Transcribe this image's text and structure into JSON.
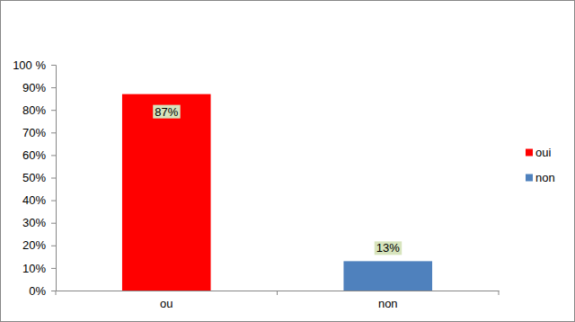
{
  "chart_data": {
    "type": "bar",
    "categories": [
      "ou",
      "non"
    ],
    "series": [
      {
        "name": "oui",
        "color": "#ff0000",
        "values": [
          87,
          null
        ],
        "value_labels": [
          "87%",
          null
        ]
      },
      {
        "name": "non",
        "color": "#4f81bd",
        "values": [
          null,
          13
        ],
        "value_labels": [
          null,
          "13%"
        ]
      }
    ],
    "ylim": [
      0,
      100
    ],
    "yticks": [
      {
        "value": 0,
        "label": "0%"
      },
      {
        "value": 10,
        "label": "10%"
      },
      {
        "value": 20,
        "label": "20%"
      },
      {
        "value": 30,
        "label": "30%"
      },
      {
        "value": 40,
        "label": "40%"
      },
      {
        "value": 50,
        "label": "50%"
      },
      {
        "value": 60,
        "label": "60%"
      },
      {
        "value": 70,
        "label": "70%"
      },
      {
        "value": 80,
        "label": "80%"
      },
      {
        "value": 90,
        "label": "90%"
      },
      {
        "value": 100,
        "label": "100 %"
      }
    ],
    "grid": false,
    "legend": "right",
    "data_labels": true
  }
}
